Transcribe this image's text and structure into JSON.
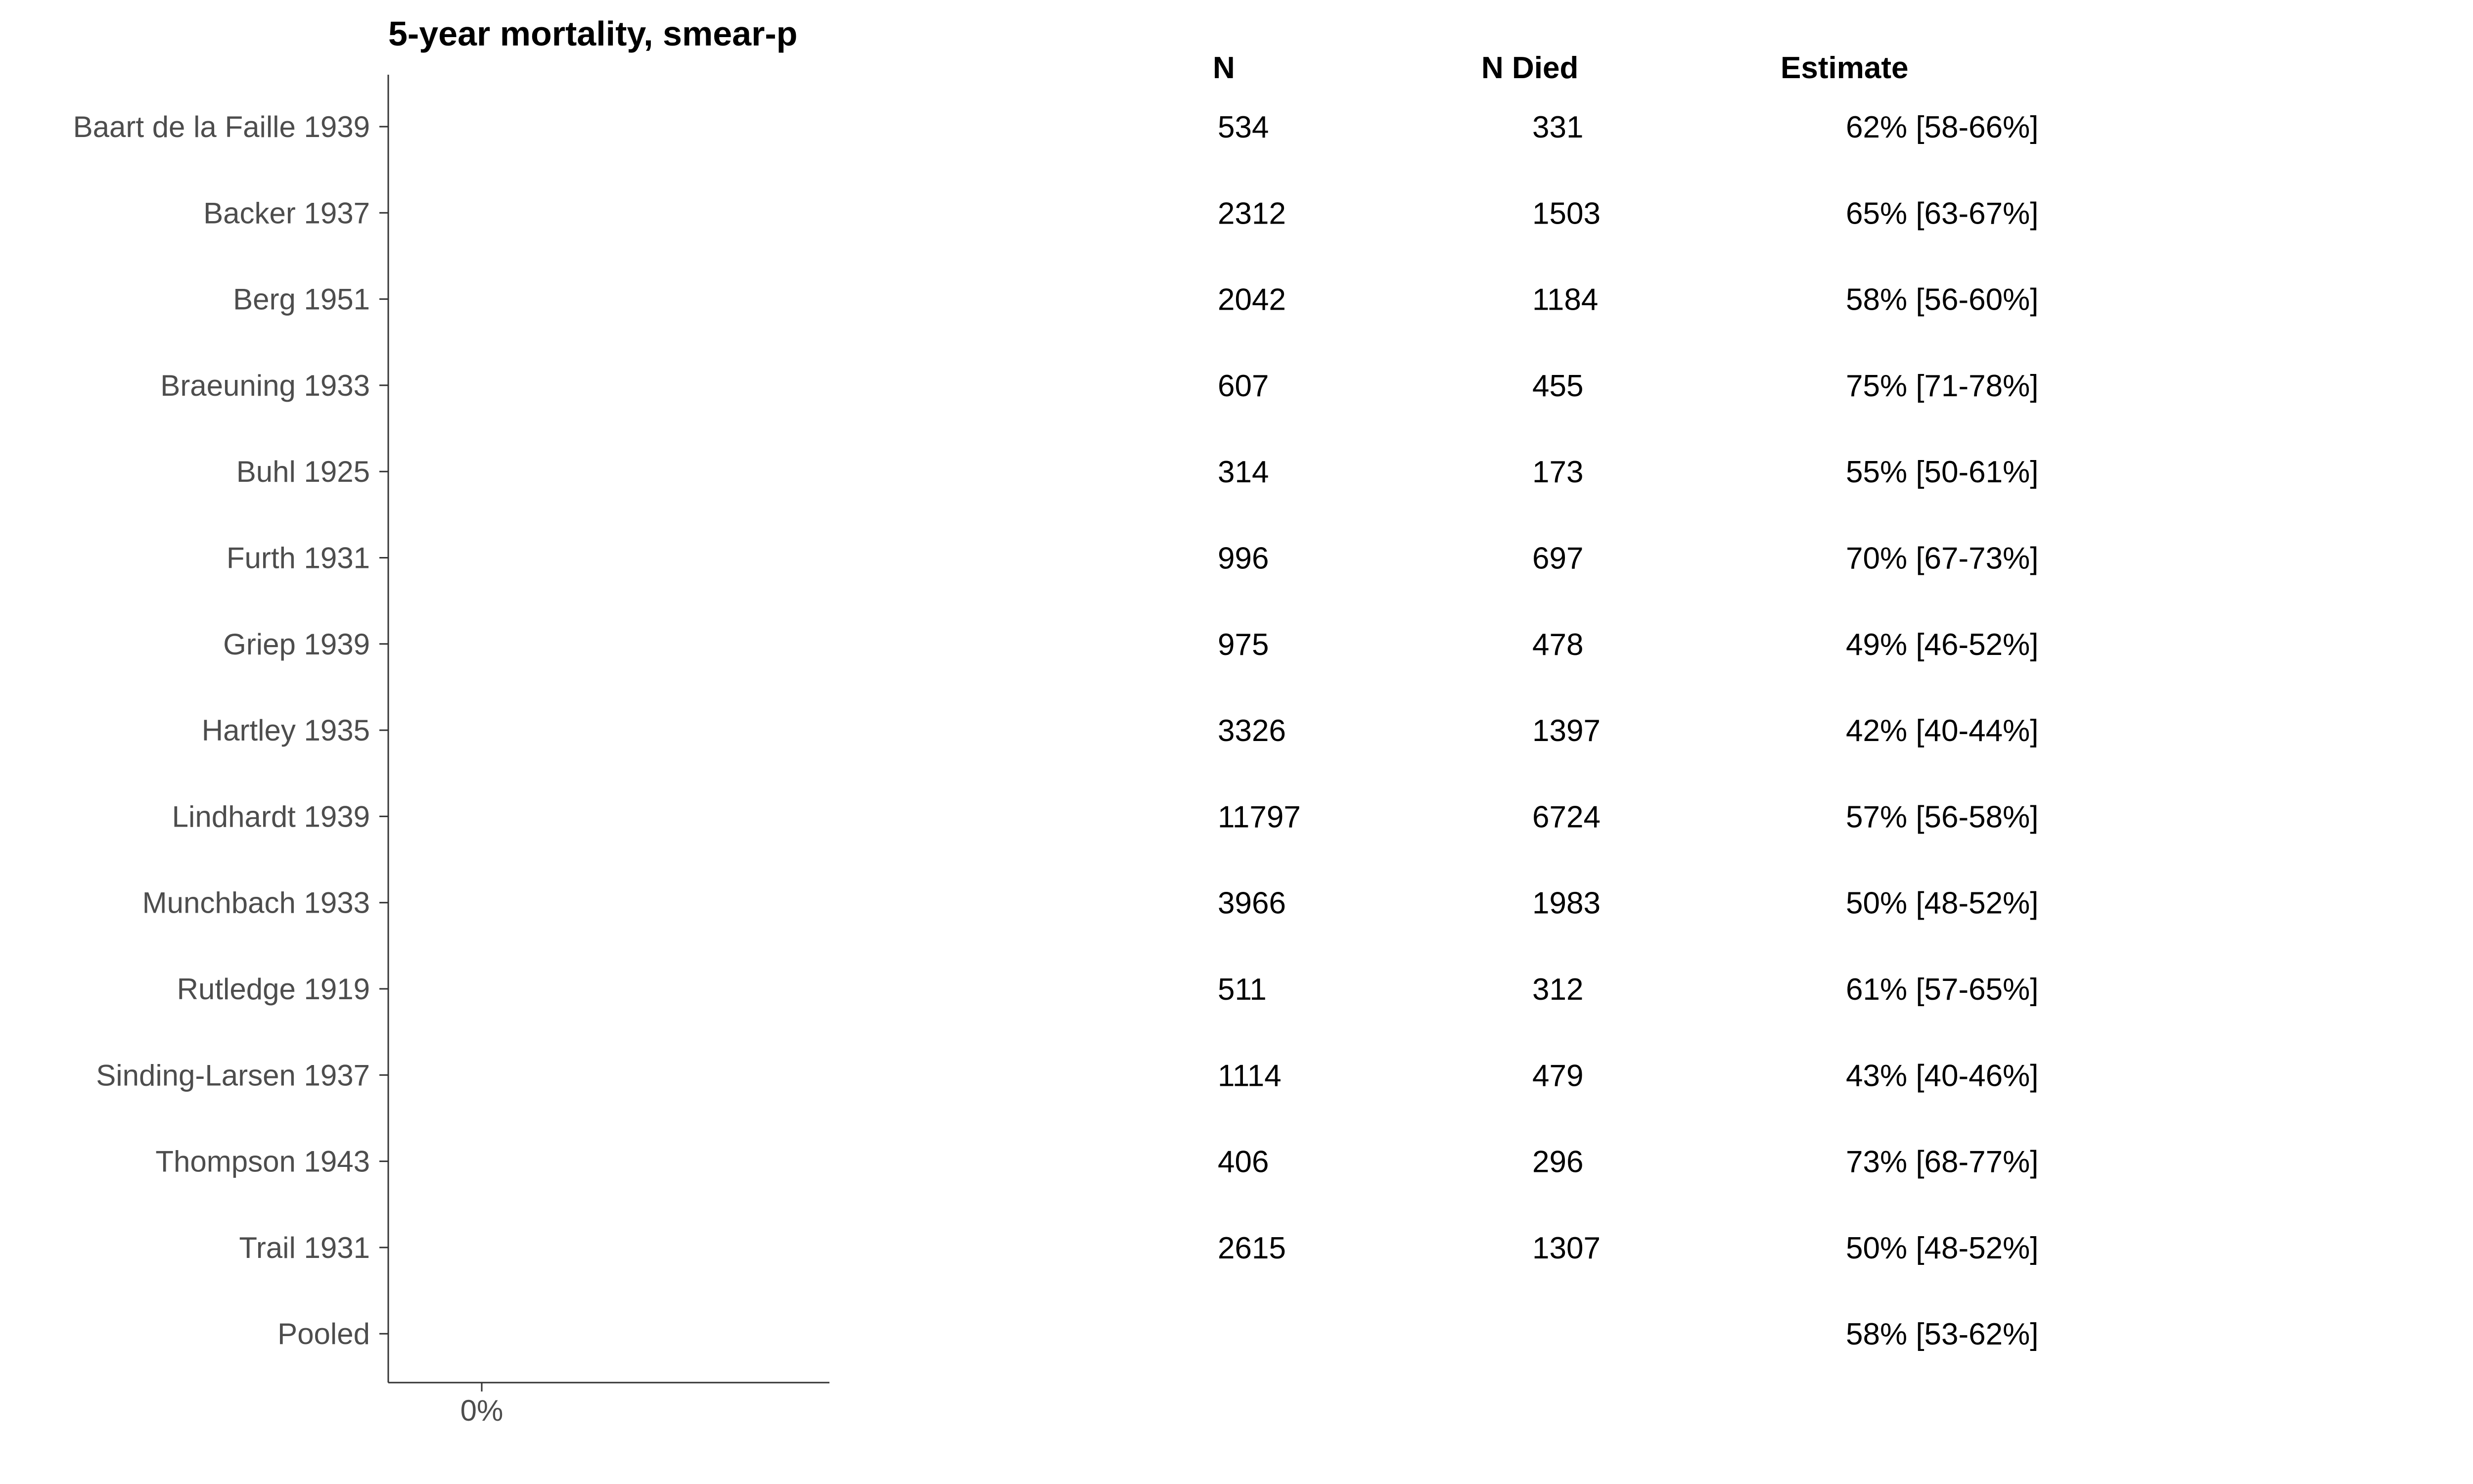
{
  "chart_data": {
    "type": "table",
    "title": "5-year mortality, smear-p",
    "x_tick_labels": [
      "0%"
    ],
    "columns": [
      "N",
      "N Died",
      "Estimate"
    ],
    "rows": [
      {
        "study": "Baart de la Faille 1939",
        "n": "534",
        "n_died": "331",
        "estimate": "62% [58-66%]"
      },
      {
        "study": "Backer 1937",
        "n": "2312",
        "n_died": "1503",
        "estimate": "65% [63-67%]"
      },
      {
        "study": "Berg 1951",
        "n": "2042",
        "n_died": "1184",
        "estimate": "58% [56-60%]"
      },
      {
        "study": "Braeuning 1933",
        "n": "607",
        "n_died": "455",
        "estimate": "75% [71-78%]"
      },
      {
        "study": "Buhl 1925",
        "n": "314",
        "n_died": "173",
        "estimate": "55% [50-61%]"
      },
      {
        "study": "Furth 1931",
        "n": "996",
        "n_died": "697",
        "estimate": "70% [67-73%]"
      },
      {
        "study": "Griep 1939",
        "n": "975",
        "n_died": "478",
        "estimate": "49% [46-52%]"
      },
      {
        "study": "Hartley 1935",
        "n": "3326",
        "n_died": "1397",
        "estimate": "42% [40-44%]"
      },
      {
        "study": "Lindhardt 1939",
        "n": "11797",
        "n_died": "6724",
        "estimate": "57% [56-58%]"
      },
      {
        "study": "Munchbach 1933",
        "n": "3966",
        "n_died": "1983",
        "estimate": "50% [48-52%]"
      },
      {
        "study": "Rutledge 1919",
        "n": "511",
        "n_died": "312",
        "estimate": "61% [57-65%]"
      },
      {
        "study": "Sinding-Larsen 1937",
        "n": "1114",
        "n_died": "479",
        "estimate": "43% [40-46%]"
      },
      {
        "study": "Thompson 1943",
        "n": "406",
        "n_died": "296",
        "estimate": "73% [68-77%]"
      },
      {
        "study": "Trail 1931",
        "n": "2615",
        "n_died": "1307",
        "estimate": "50% [48-52%]"
      },
      {
        "study": "Pooled",
        "n": "",
        "n_died": "",
        "estimate": "58% [53-62%]"
      }
    ]
  }
}
